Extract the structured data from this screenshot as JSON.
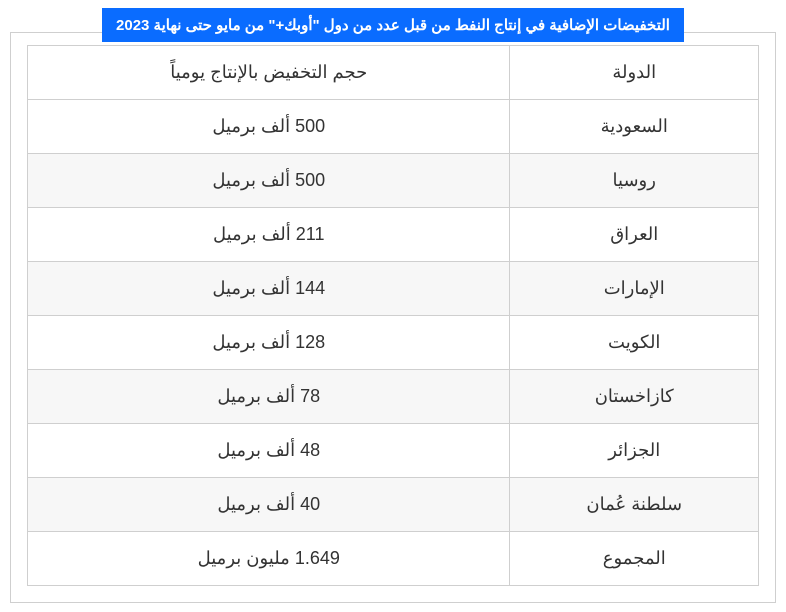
{
  "title_banner": "التخفيضات الإضافية في إنتاج النفط من قبل عدد من دول \"أوبك+\" من مايو حتى نهاية 2023",
  "table": {
    "columns": {
      "country": "الدولة",
      "amount": "حجم التخفيض بالإنتاج يومياً"
    },
    "rows": [
      {
        "country": "السعودية",
        "amount": "500 ألف برميل"
      },
      {
        "country": "روسيا",
        "amount": "500 ألف برميل"
      },
      {
        "country": "العراق",
        "amount": "211 ألف برميل"
      },
      {
        "country": "الإمارات",
        "amount": "144 ألف برميل"
      },
      {
        "country": "الكويت",
        "amount": "128 ألف برميل"
      },
      {
        "country": "كازاخستان",
        "amount": "78 ألف برميل"
      },
      {
        "country": "الجزائر",
        "amount": "48 ألف برميل"
      },
      {
        "country": "سلطنة عُمان",
        "amount": "40 ألف برميل"
      },
      {
        "country": "المجموع",
        "amount": "1.649 مليون برميل"
      }
    ],
    "colors": {
      "banner_bg": "#0a6cff",
      "banner_text": "#ffffff",
      "border": "#cfcfcf",
      "row_alt_bg": "#f7f7f7",
      "row_bg": "#ffffff",
      "text": "#333333"
    },
    "column_widths_pct": {
      "country": 34,
      "amount": 66
    },
    "font_sizes_pt": {
      "banner": 11,
      "cell": 13
    }
  }
}
